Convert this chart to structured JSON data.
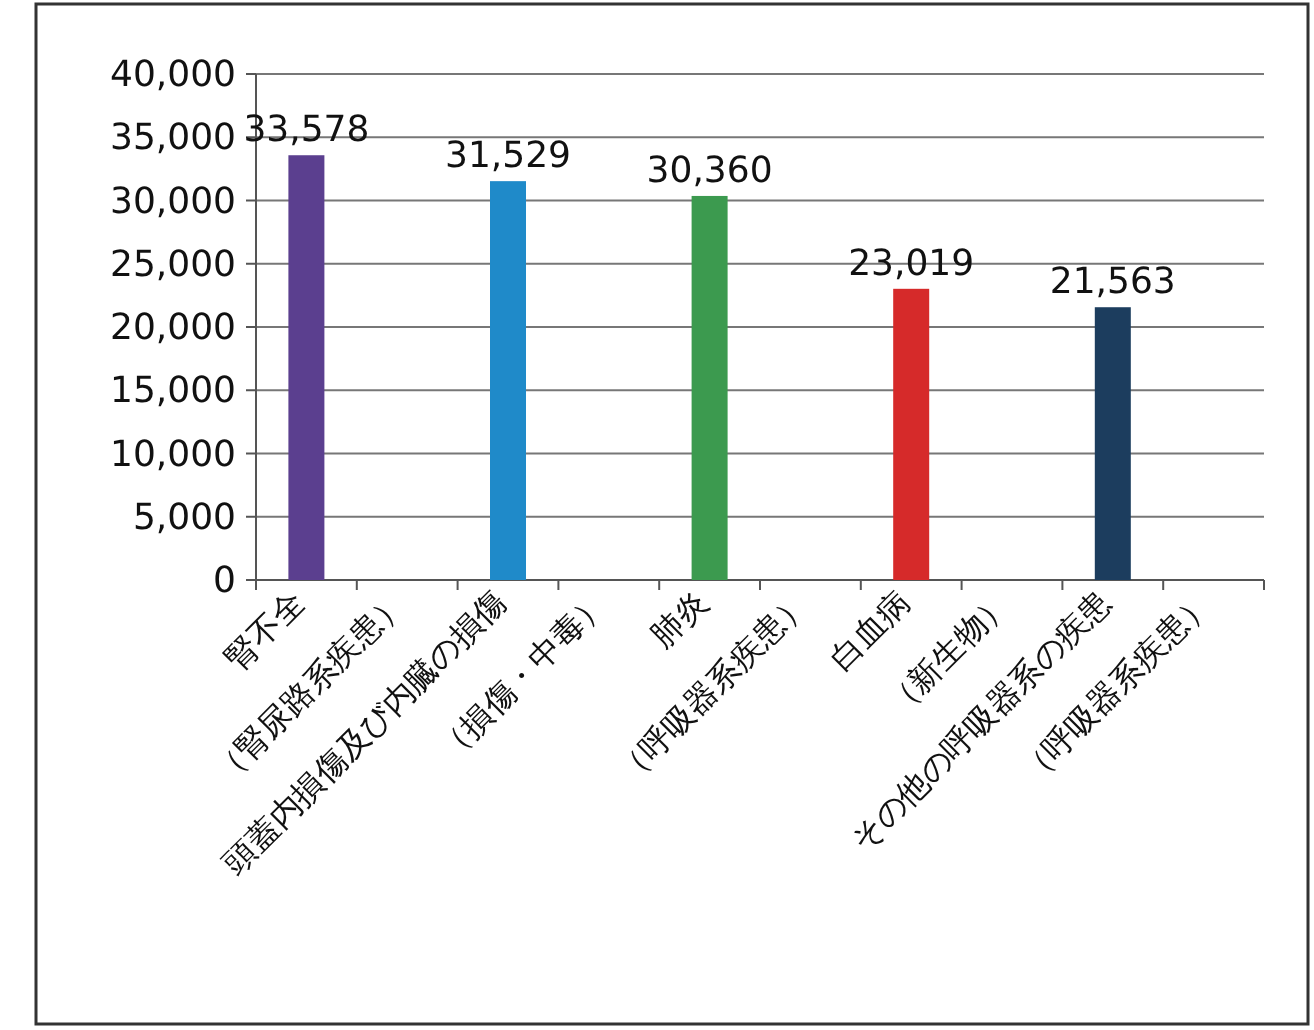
{
  "chart_data": {
    "type": "bar",
    "categories": [
      "腎不全",
      "（腎尿路系疾患）",
      "頭蓋内損傷及び内臓の損傷",
      "（損傷・中毒）",
      "肺炎",
      "（呼吸器系疾患）",
      "白血病",
      "（新生物）",
      "その他の呼吸器系の疾患",
      "（呼吸器系疾患）"
    ],
    "values": [
      33578,
      null,
      31529,
      null,
      30360,
      null,
      23019,
      null,
      21563,
      null
    ],
    "value_labels": [
      "33,578",
      null,
      "31,529",
      null,
      "30,360",
      null,
      "23,019",
      null,
      "21,563",
      null
    ],
    "colors": [
      "#5b3f8f",
      null,
      "#1f8ac9",
      null,
      "#3c9a4f",
      null,
      "#d62a2a",
      null,
      "#1c3d5e",
      null
    ],
    "ylim": [
      0,
      40000
    ],
    "yticks": [
      {
        "value": 0,
        "label": "0"
      },
      {
        "value": 5000,
        "label": "5,000"
      },
      {
        "value": 10000,
        "label": "10,000"
      },
      {
        "value": 15000,
        "label": "15,000"
      },
      {
        "value": 20000,
        "label": "20,000"
      },
      {
        "value": 25000,
        "label": "25,000"
      },
      {
        "value": 30000,
        "label": "30,000"
      },
      {
        "value": 35000,
        "label": "35,000"
      },
      {
        "value": 40000,
        "label": "40,000"
      }
    ],
    "grid": "y"
  }
}
